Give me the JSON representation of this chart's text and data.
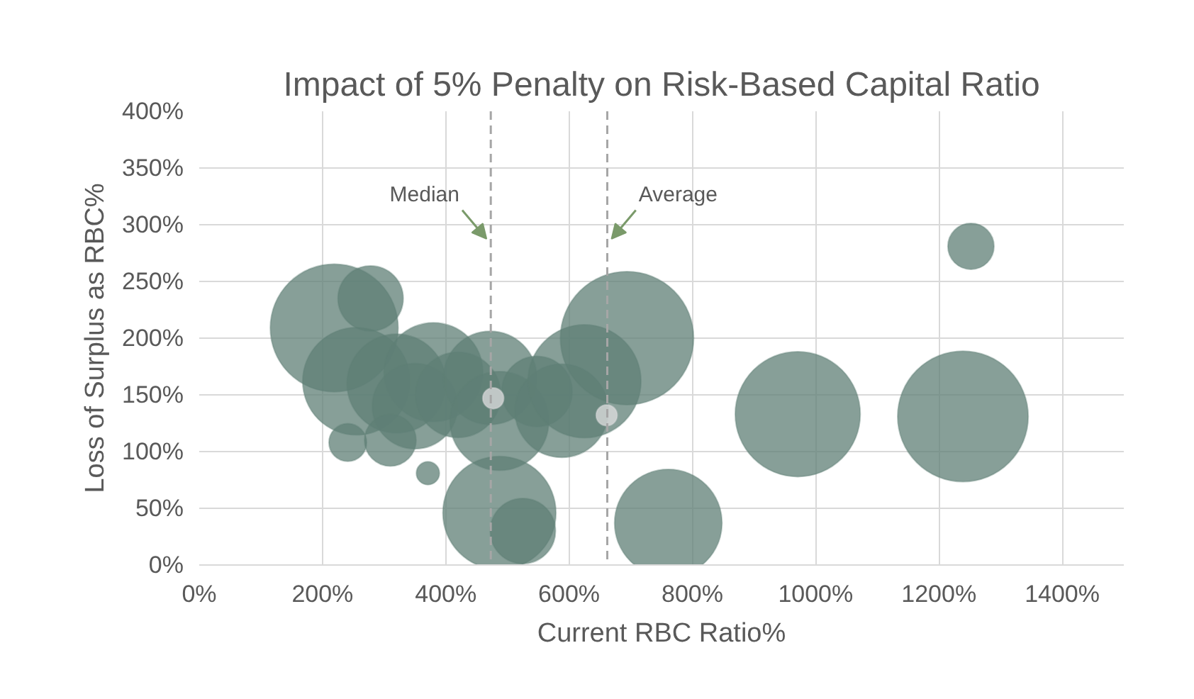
{
  "chart_data": {
    "type": "bubble",
    "title": "Impact of 5% Penalty on Risk-Based Capital Ratio",
    "xlabel": "Current RBC Ratio%",
    "ylabel": "Loss of Surplus as RBC%",
    "xlim": [
      0,
      1500
    ],
    "ylim": [
      0,
      400
    ],
    "xticks": [
      {
        "value": 0,
        "label": "0%"
      },
      {
        "value": 200,
        "label": "200%"
      },
      {
        "value": 400,
        "label": "400%"
      },
      {
        "value": 600,
        "label": "600%"
      },
      {
        "value": 800,
        "label": "800%"
      },
      {
        "value": 1000,
        "label": "1000%"
      },
      {
        "value": 1200,
        "label": "1200%"
      },
      {
        "value": 1400,
        "label": "1400%"
      }
    ],
    "yticks": [
      {
        "value": 0,
        "label": "0%"
      },
      {
        "value": 50,
        "label": "50%"
      },
      {
        "value": 100,
        "label": "100%"
      },
      {
        "value": 150,
        "label": "150%"
      },
      {
        "value": 200,
        "label": "200%"
      },
      {
        "value": 250,
        "label": "250%"
      },
      {
        "value": 300,
        "label": "300%"
      },
      {
        "value": 350,
        "label": "350%"
      },
      {
        "value": 400,
        "label": "400%"
      }
    ],
    "grid": true,
    "series": [
      {
        "color": "#5f7f76",
        "x": [
          219,
          278,
          255,
          320,
          380,
          350,
          420,
          241,
          310,
          371,
          472,
          487,
          487,
          525,
          548,
          588,
          625,
          694,
          761,
          971,
          1239,
          1252
        ],
        "values": [
          209,
          235,
          162,
          160,
          170,
          140,
          150,
          108,
          110,
          81,
          165,
          127,
          46,
          30,
          153,
          136,
          162,
          200,
          37,
          133,
          131,
          281
        ],
        "sizes": [
          0.92,
          0.24,
          0.65,
          0.55,
          0.55,
          0.41,
          0.41,
          0.08,
          0.15,
          0.03,
          0.49,
          0.55,
          0.72,
          0.24,
          0.28,
          0.49,
          0.72,
          1,
          0.65,
          0.88,
          0.96,
          0.12
        ]
      },
      {
        "color": "#e0dfe0",
        "x": [
          477,
          661
        ],
        "values": [
          147,
          132
        ],
        "sizes": [
          0.025,
          0.025
        ]
      }
    ],
    "ref_lines": [
      {
        "axis": "x",
        "value": 473,
        "color": "#a6a6a6",
        "line_style": "dashed"
      },
      {
        "axis": "x",
        "value": 662,
        "color": "#a6a6a6",
        "line_style": "dashed"
      }
    ],
    "annotations": [
      {
        "text": "Median",
        "x": 473,
        "y": 285
      },
      {
        "text": "Average",
        "x": 662,
        "y": 285
      }
    ]
  }
}
